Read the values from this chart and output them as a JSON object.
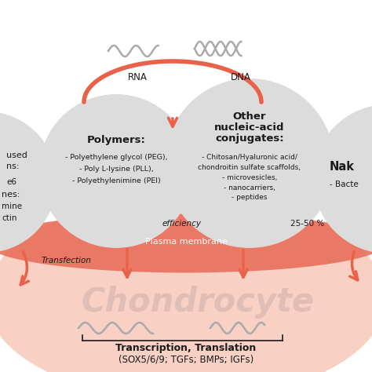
{
  "bg_color": "#ffffff",
  "cell_color": "#f8d0c4",
  "membrane_color": "#e8705a",
  "circle_color": "#dcdcdc",
  "arrow_color": "#e8624a",
  "text_dark": "#1a1a1a",
  "text_light": "#ffffff",
  "chondrocyte_text_color": "#ccada8",
  "squiggle_color": "#aaaaaa",
  "rna_label": "RNA",
  "dna_label": "DNA",
  "plasma_membrane_label": "Plasma membrane",
  "chondrocyte_label": "Chondrocyte",
  "transfection_label": "Transfection",
  "efficiency_label": "efficiency",
  "percent_label": "25-50 %",
  "bottom_label_line1": "Transcription, Translation",
  "bottom_label_line2": "(SOX5/6/9; TGFs; BMPs; IGFs)",
  "polymers_title": "Polymers:",
  "polymers_lines": [
    "- Polyethylene glycol (PEG),",
    "- Poly L-lysine (PLL),",
    "- Polyethylenimine (PEI)"
  ],
  "conjugates_title_lines": [
    "Other",
    "nucleic-acid",
    "conjugates:"
  ],
  "conjugates_lines": [
    "- Chitosan/Hyaluronic acid/",
    "chondroitin sulfate scaffolds,",
    "- microvesicles,",
    "- nanocarriers,",
    "- peptides"
  ],
  "naked_title": "Nak",
  "naked_item": "- Bacte",
  "left_lines": [
    "used",
    "ns:",
    "e6",
    "nes:",
    "mine",
    "ctin"
  ]
}
